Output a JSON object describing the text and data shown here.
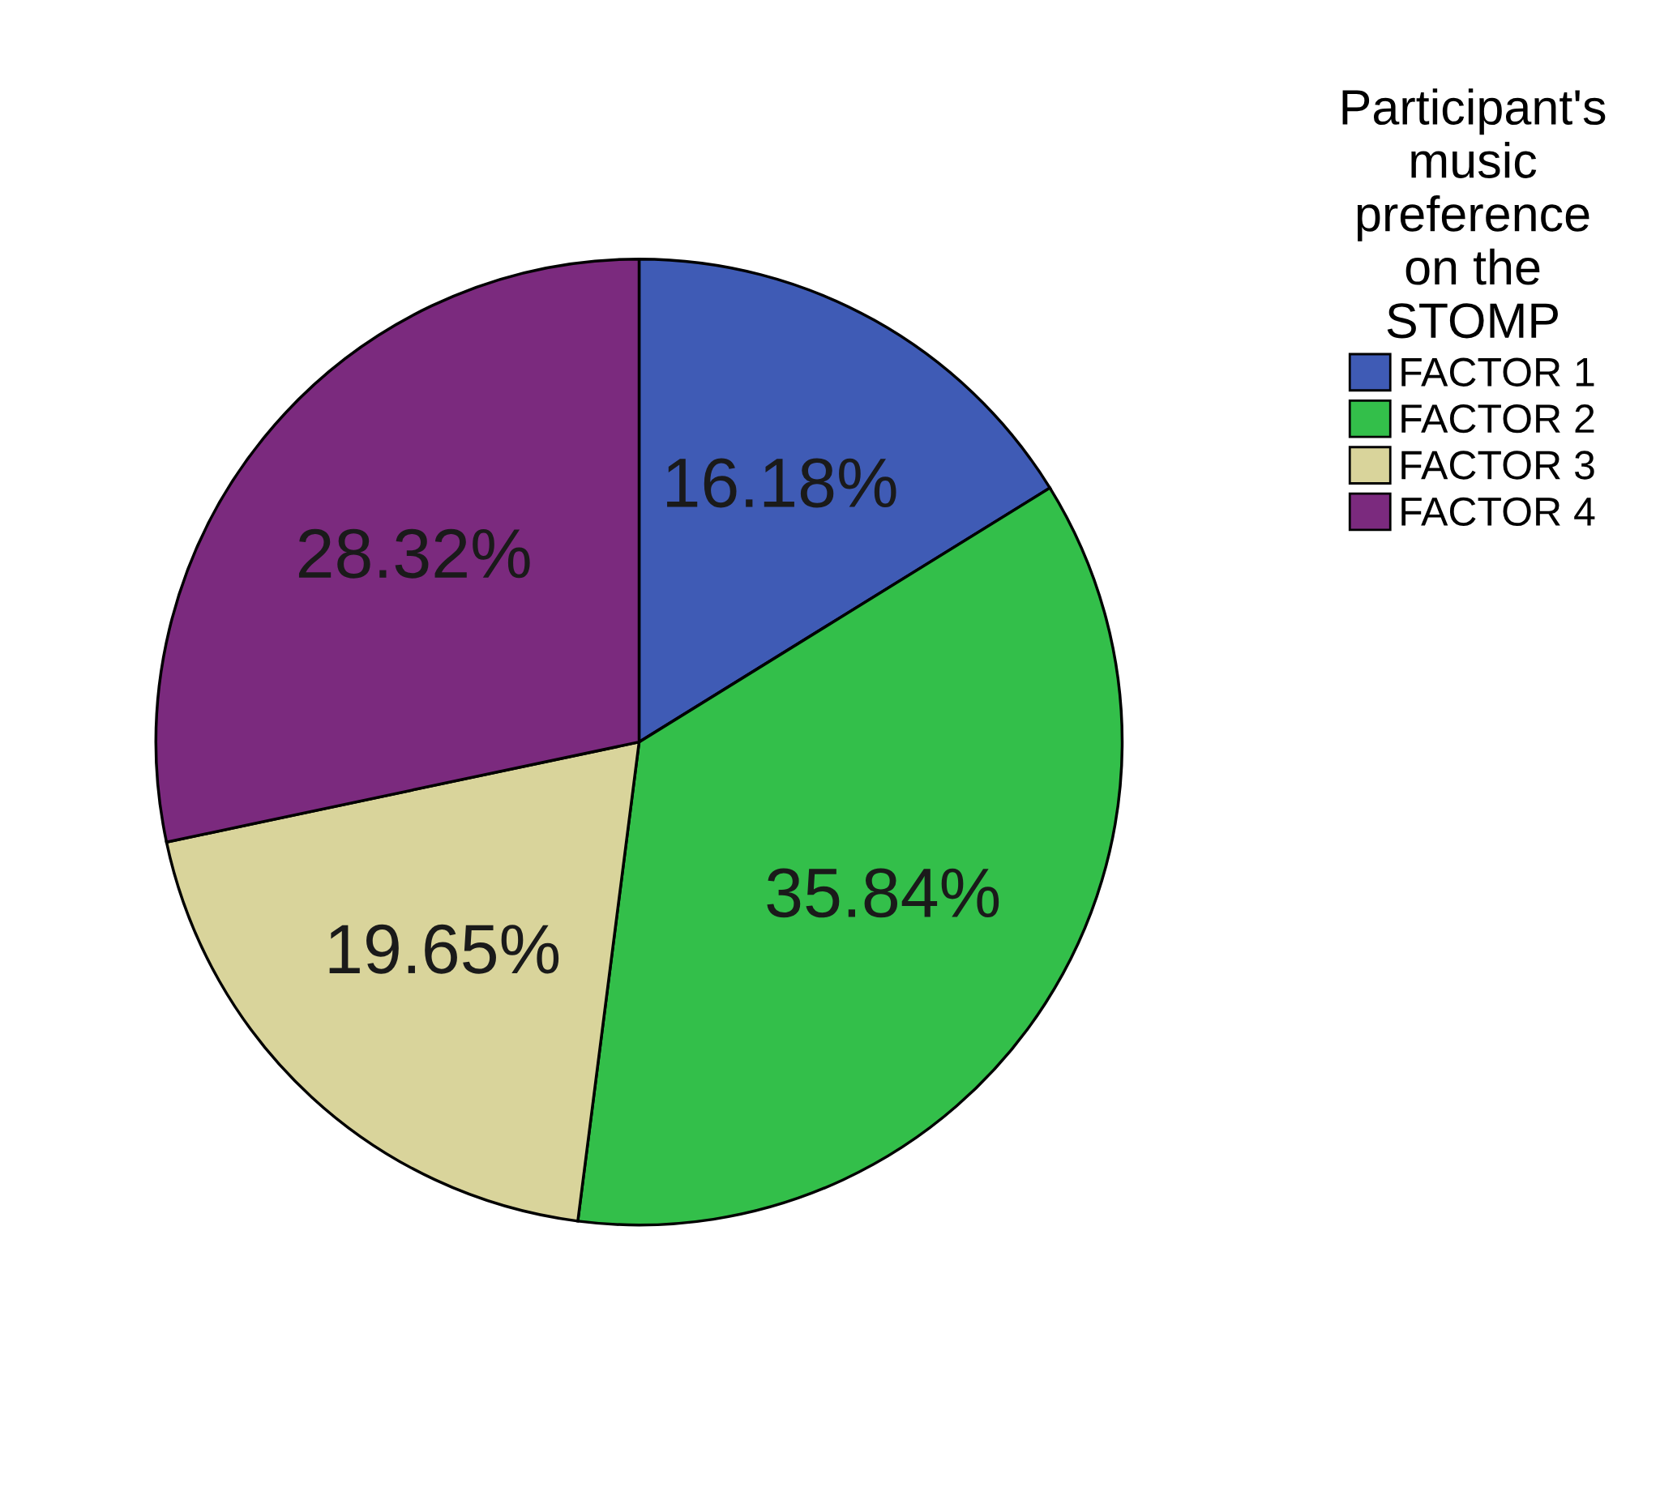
{
  "chart_data": {
    "type": "pie",
    "legend_title": "Participant's\nmusic\npreference\non the\nSTOMP",
    "categories": [
      "FACTOR 1",
      "FACTOR 2",
      "FACTOR 3",
      "FACTOR 4"
    ],
    "values": [
      16.18,
      35.84,
      19.65,
      28.32
    ],
    "colors": [
      "#3f5bb5",
      "#33bf4a",
      "#d9d49b",
      "#7b2a7e"
    ],
    "value_labels": [
      "16.18%",
      "35.84%",
      "19.65%",
      "28.32%"
    ],
    "legend": "top right"
  }
}
